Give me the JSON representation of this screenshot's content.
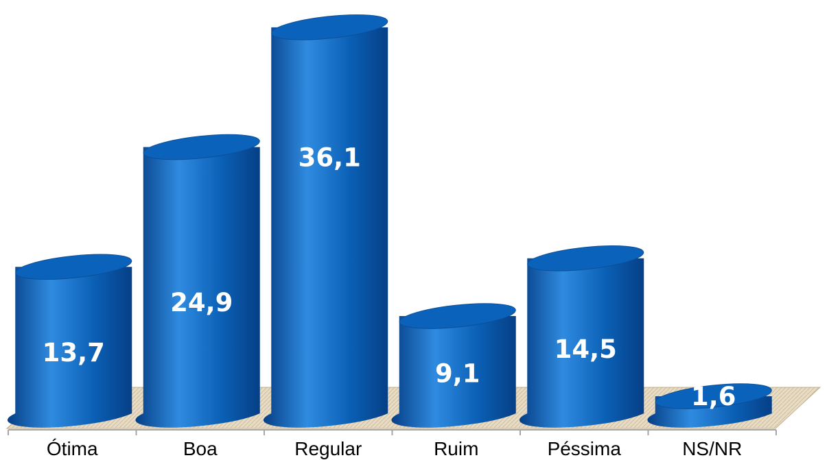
{
  "chart_data": {
    "type": "bar",
    "style": "3d-cylinder",
    "categories": [
      "Ótima",
      "Boa",
      "Regular",
      "Ruim",
      "Péssima",
      "NS/NR"
    ],
    "values": [
      13.7,
      24.9,
      36.1,
      9.1,
      14.5,
      1.6
    ],
    "value_labels": [
      "13,7",
      "24,9",
      "36,1",
      "9,1",
      "14,5",
      "1,6"
    ],
    "title": "",
    "xlabel": "",
    "ylabel": "",
    "grid": false,
    "legend": "none",
    "colors": {
      "bar": "#0a5fb4",
      "bar_light": "#2f8be0",
      "bar_dark": "#063f86",
      "top": "#0b62ba",
      "floor": "#e4d8c0",
      "axis": "#a6a6a6"
    }
  }
}
